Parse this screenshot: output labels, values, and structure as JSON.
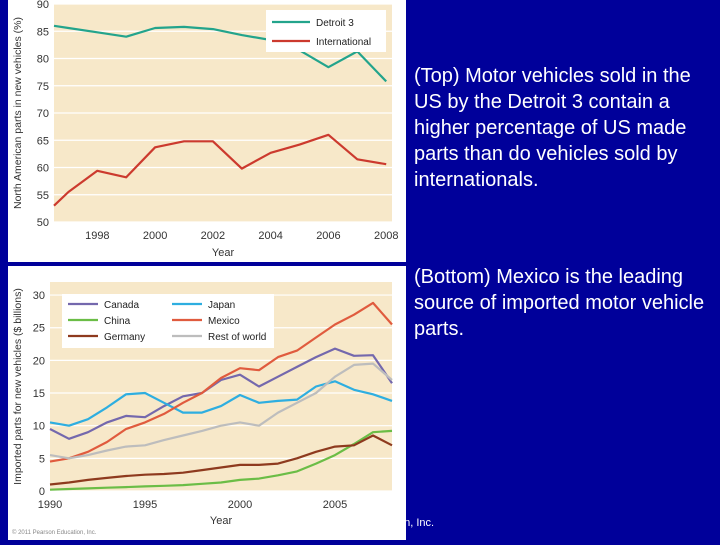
{
  "slide": {
    "caption_top": "(Top) Motor vehicles sold in the US by the Detroit 3 contain a higher percentage of US made parts than do vehicles sold by internationals.",
    "caption_bottom": "(Bottom) Mexico is the leading source of imported motor vehicle parts.",
    "copyright_tail": "on, Inc.",
    "copyright_small": "© 2011 Pearson Education, Inc."
  },
  "colors": {
    "slide_bg": "#00009a",
    "plot_bg": "#f7e8c9",
    "detroit3": "#23a48c",
    "international": "#cc3a2e",
    "canada": "#7468ad",
    "japan": "#2eaee0",
    "china": "#6bbd46",
    "mexico": "#e05b3e",
    "germany": "#8e3a1e",
    "rest_of_world": "#bdbdbd"
  },
  "chart_data": [
    {
      "type": "line",
      "title": "",
      "xlabel": "Year",
      "ylabel": "North American parts in new vehicles (%)",
      "xlim": [
        1996.5,
        2008.2
      ],
      "ylim": [
        50,
        90
      ],
      "xticks": [
        "1998",
        "2000",
        "2002",
        "2004",
        "2006",
        "2008"
      ],
      "yticks": [
        "50",
        "55",
        "60",
        "65",
        "70",
        "75",
        "80",
        "85",
        "90"
      ],
      "legend": "top-right",
      "series": [
        {
          "name": "Detroit 3",
          "color_key": "detroit3",
          "x": [
            1996.5,
            1997,
            1998,
            1999,
            2000,
            2001,
            2002,
            2003,
            2004,
            2005,
            2006,
            2007,
            2008
          ],
          "y": [
            86,
            85.6,
            84.8,
            84,
            85.6,
            85.8,
            85.4,
            84.3,
            83.4,
            81.5,
            78.4,
            81.3,
            75.8
          ]
        },
        {
          "name": "International",
          "color_key": "international",
          "x": [
            1996.5,
            1997,
            1998,
            1999,
            2000,
            2001,
            2002,
            2003,
            2004,
            2005,
            2006,
            2007,
            2008
          ],
          "y": [
            53,
            55.5,
            59.4,
            58.2,
            63.7,
            64.8,
            64.8,
            59.8,
            62.7,
            64.2,
            66,
            61.5,
            60.6
          ]
        }
      ]
    },
    {
      "type": "line",
      "title": "",
      "xlabel": "Year",
      "ylabel": "Imported parts for new vehicles ($ billions)",
      "xlim": [
        1990,
        2008
      ],
      "ylim": [
        0,
        32
      ],
      "xticks": [
        "1990",
        "1995",
        "2000",
        "2005"
      ],
      "yticks": [
        "0",
        "5",
        "10",
        "15",
        "20",
        "25",
        "30"
      ],
      "legend": "top",
      "x": [
        1990,
        1991,
        1992,
        1993,
        1994,
        1995,
        1996,
        1997,
        1998,
        1999,
        2000,
        2001,
        2002,
        2003,
        2004,
        2005,
        2006,
        2007,
        2008
      ],
      "series": [
        {
          "name": "Canada",
          "color_key": "canada",
          "values": [
            9.5,
            8,
            9,
            10.5,
            11.5,
            11.3,
            13,
            14.5,
            15,
            17,
            17.8,
            16,
            17.5,
            19,
            20.5,
            21.8,
            20.7,
            20.8,
            16.5
          ]
        },
        {
          "name": "Japan",
          "color_key": "japan",
          "values": [
            10.5,
            10,
            11,
            12.8,
            14.8,
            15,
            13.5,
            12,
            12,
            13,
            14.7,
            13.5,
            13.8,
            14,
            16,
            16.8,
            15.5,
            14.8,
            13.8
          ]
        },
        {
          "name": "China",
          "color_key": "china",
          "values": [
            0.2,
            0.3,
            0.4,
            0.5,
            0.6,
            0.7,
            0.8,
            0.9,
            1.1,
            1.3,
            1.7,
            1.9,
            2.4,
            3,
            4.2,
            5.5,
            7.2,
            9,
            9.2
          ]
        },
        {
          "name": "Mexico",
          "color_key": "mexico",
          "values": [
            4.5,
            5,
            6,
            7.5,
            9.5,
            10.5,
            11.8,
            13.5,
            15,
            17.3,
            18.8,
            18.5,
            20.5,
            21.5,
            23.5,
            25.5,
            27,
            28.8,
            25.5
          ]
        },
        {
          "name": "Germany",
          "color_key": "germany",
          "values": [
            1,
            1.3,
            1.7,
            2,
            2.3,
            2.5,
            2.6,
            2.8,
            3.2,
            3.6,
            4,
            4,
            4.2,
            5,
            6,
            6.8,
            7,
            8.5,
            7
          ]
        },
        {
          "name": "Rest of world",
          "color_key": "rest_of_world",
          "values": [
            5.5,
            5,
            5.5,
            6.2,
            6.8,
            7,
            7.8,
            8.5,
            9.2,
            10,
            10.5,
            10,
            12,
            13.5,
            15,
            17.5,
            19.3,
            19.5,
            17
          ]
        }
      ]
    }
  ]
}
